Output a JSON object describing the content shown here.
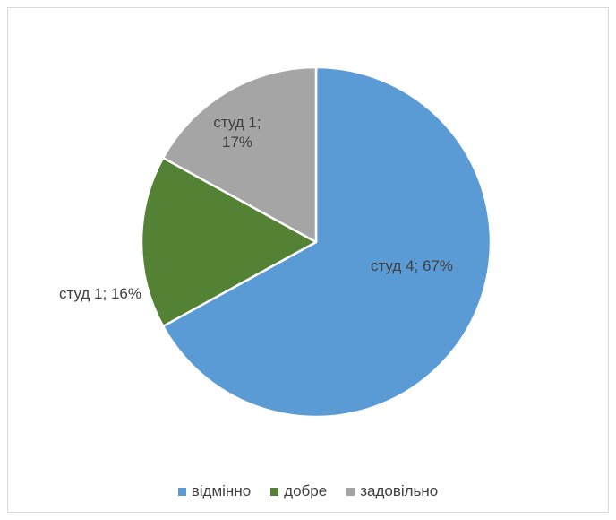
{
  "chart_data": {
    "type": "pie",
    "categories": [
      "відмінно",
      "добре",
      "задовільно"
    ],
    "values": [
      67,
      16,
      17
    ],
    "value_labels": [
      "студ 4; 67%",
      "студ 1; 16%",
      "студ 1; 17%"
    ],
    "colors": [
      "#5b9bd5",
      "#548235",
      "#a5a5a5"
    ],
    "legend": "bottom"
  }
}
